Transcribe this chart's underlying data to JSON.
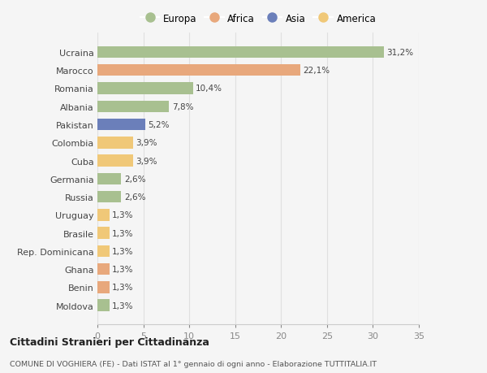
{
  "categories": [
    "Ucraina",
    "Marocco",
    "Romania",
    "Albania",
    "Pakistan",
    "Colombia",
    "Cuba",
    "Germania",
    "Russia",
    "Uruguay",
    "Brasile",
    "Rep. Dominicana",
    "Ghana",
    "Benin",
    "Moldova"
  ],
  "values": [
    31.2,
    22.1,
    10.4,
    7.8,
    5.2,
    3.9,
    3.9,
    2.6,
    2.6,
    1.3,
    1.3,
    1.3,
    1.3,
    1.3,
    1.3
  ],
  "labels": [
    "31,2%",
    "22,1%",
    "10,4%",
    "7,8%",
    "5,2%",
    "3,9%",
    "3,9%",
    "2,6%",
    "2,6%",
    "1,3%",
    "1,3%",
    "1,3%",
    "1,3%",
    "1,3%",
    "1,3%"
  ],
  "continents": [
    "Europa",
    "Africa",
    "Europa",
    "Europa",
    "Asia",
    "America",
    "America",
    "Europa",
    "Europa",
    "America",
    "America",
    "America",
    "Africa",
    "Africa",
    "Europa"
  ],
  "continent_colors": {
    "Europa": "#a8c090",
    "Africa": "#e8a87c",
    "Asia": "#6b7fba",
    "America": "#f0c878"
  },
  "legend_order": [
    "Europa",
    "Africa",
    "Asia",
    "America"
  ],
  "title": "Cittadini Stranieri per Cittadinanza",
  "subtitle": "COMUNE DI VOGHIERA (FE) - Dati ISTAT al 1° gennaio di ogni anno - Elaborazione TUTTITALIA.IT",
  "xlim": [
    0,
    35
  ],
  "xticks": [
    0,
    5,
    10,
    15,
    20,
    25,
    30,
    35
  ],
  "background_color": "#f5f5f5",
  "grid_color": "#e0e0e0",
  "bar_height": 0.65
}
